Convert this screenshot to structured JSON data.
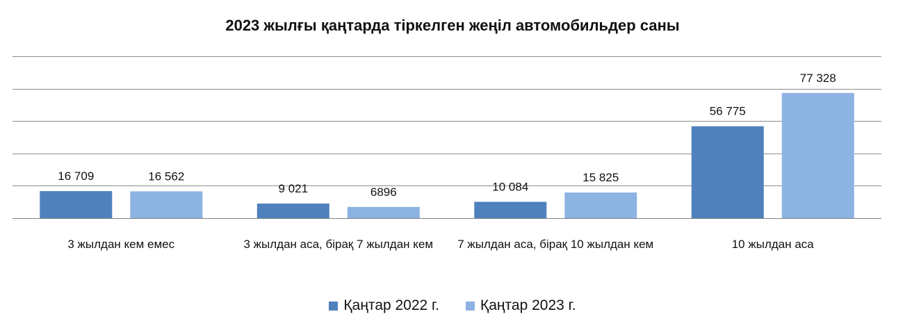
{
  "chart_data": {
    "type": "bar",
    "title": "2023 жылғы қаңтарда тіркелген жеңіл автомобильдер саны",
    "categories": [
      "3 жылдан кем емес",
      "3 жылдан аса, бірақ 7 жылдан кем",
      "7 жылдан аса, бірақ 10 жылдан кем",
      "10 жылдан аса"
    ],
    "series": [
      {
        "name": "Қаңтар 2022 г.",
        "values": [
          16709,
          9021,
          10084,
          56775
        ],
        "labels": [
          "16 709",
          "9 021",
          "10 084",
          "56 775"
        ],
        "color": "#4f81bd"
      },
      {
        "name": "Қаңтар 2023 г.",
        "values": [
          16562,
          6896,
          15825,
          77328
        ],
        "labels": [
          "16 562",
          "6896",
          "15 825",
          "77 328"
        ],
        "color": "#8db3e2"
      }
    ],
    "ylim": [
      0,
      100000
    ],
    "yticks": [
      0,
      20000,
      40000,
      60000,
      80000,
      100000
    ],
    "grid": true,
    "legend": "bottom"
  }
}
